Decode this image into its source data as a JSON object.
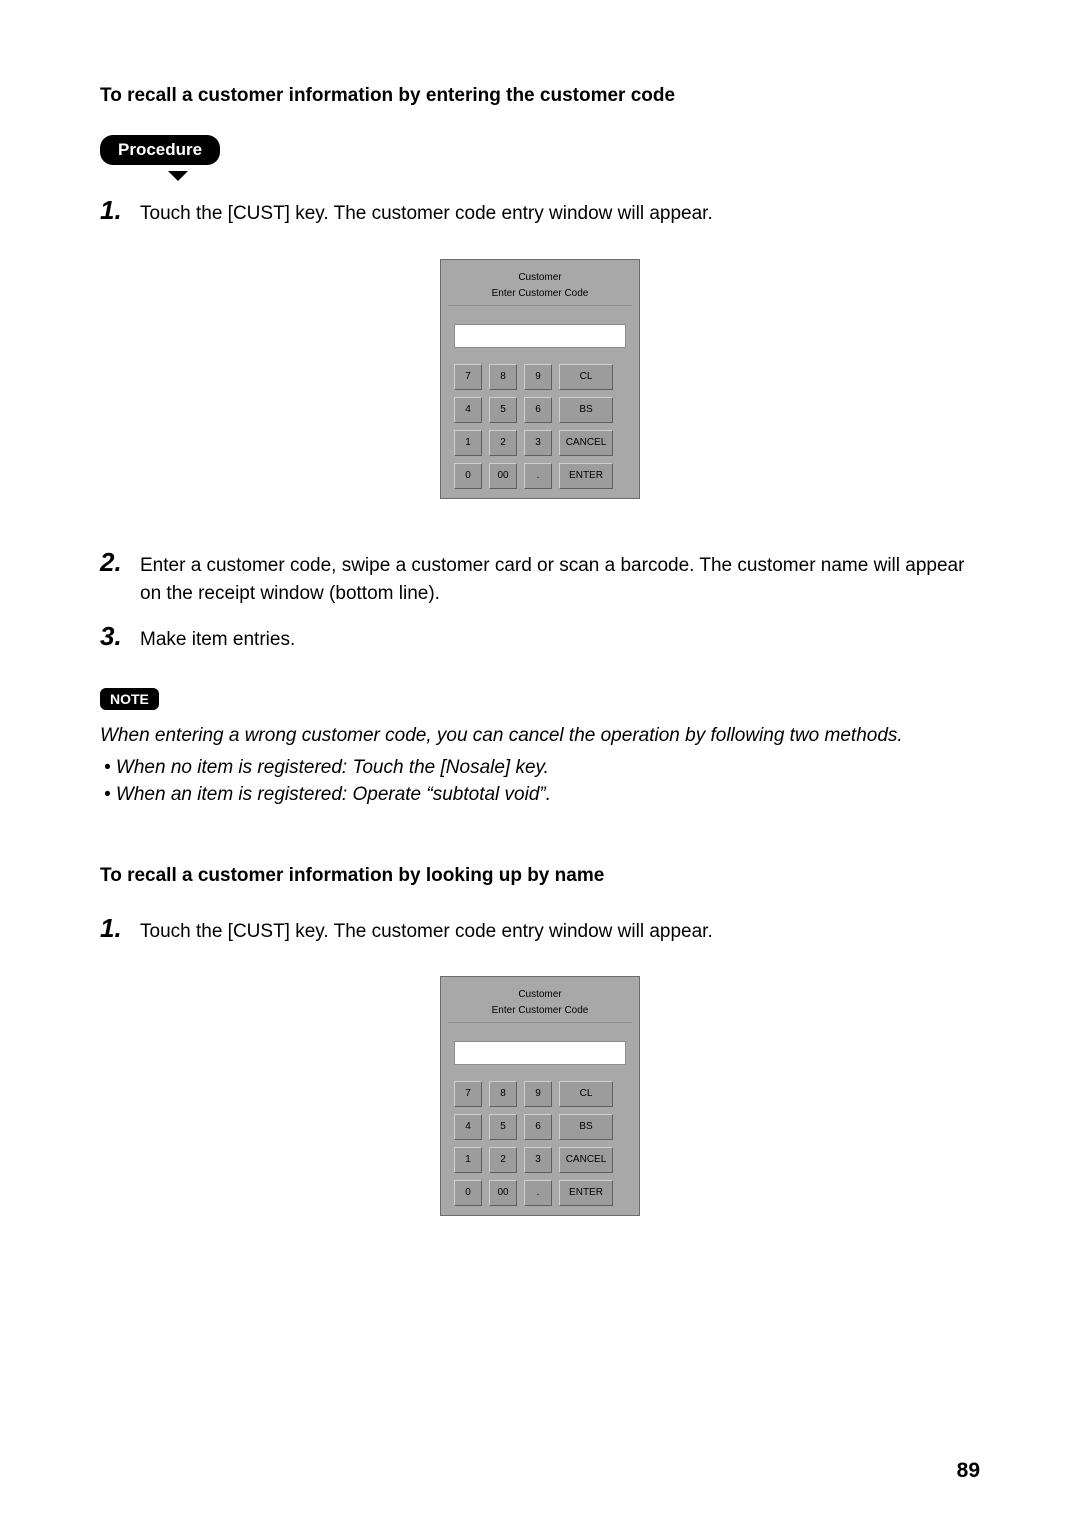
{
  "section1": {
    "title": "To recall a customer information by entering the customer code",
    "procedure_label": "Procedure",
    "steps": [
      {
        "num": "1.",
        "text": "Touch the [CUST] key.  The customer code entry window will appear."
      },
      {
        "num": "2.",
        "text": "Enter a customer code, swipe a customer card or scan a barcode.  The customer name will appear on the receipt window (bottom line)."
      },
      {
        "num": "3.",
        "text": "Make item entries."
      }
    ]
  },
  "keypad": {
    "title": "Customer",
    "subtitle": "Enter Customer Code",
    "buttons": {
      "r1c1": "7",
      "r1c2": "8",
      "r1c3": "9",
      "r1c4": "CL",
      "r2c1": "4",
      "r2c2": "5",
      "r2c3": "6",
      "r2c4": "BS",
      "r3c1": "1",
      "r3c2": "2",
      "r3c3": "3",
      "r3c4": "CANCEL",
      "r4c1": "0",
      "r4c2": "00",
      "r4c3": ".",
      "r4c4": "ENTER"
    },
    "colors": {
      "panel_bg": "#a8a8a8",
      "button_bg": "#9c9c9c",
      "display_bg": "#ffffff"
    }
  },
  "note": {
    "label": "NOTE",
    "intro": "When entering a wrong customer code, you can cancel the operation by following two methods.",
    "bullets": [
      "• When no item is registered:  Touch the [Nosale] key.",
      "• When an item is registered:  Operate “subtotal void”."
    ]
  },
  "section2": {
    "title": "To recall a customer information by looking up by name",
    "steps": [
      {
        "num": "1.",
        "text": "Touch the [CUST] key.  The customer code entry window will appear."
      }
    ]
  },
  "page_number": "89"
}
